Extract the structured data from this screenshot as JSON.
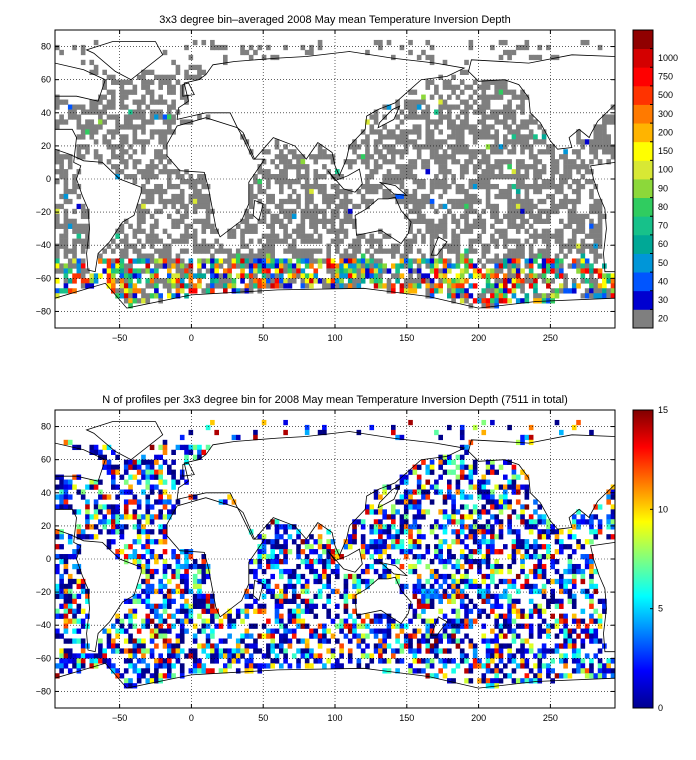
{
  "chart_data": [
    {
      "type": "heatmap",
      "title": "3x3 degree bin–averaged 2008 May mean Temperature Inversion Depth",
      "xlabel": "",
      "ylabel": "",
      "xlim": [
        -95,
        295
      ],
      "ylim": [
        -90,
        90
      ],
      "xticks": [
        -50,
        0,
        50,
        100,
        150,
        200,
        250
      ],
      "yticks": [
        80,
        60,
        40,
        20,
        0,
        -20,
        -40,
        -60,
        -80
      ],
      "xtick_labels": [
        "−50",
        "0",
        "50",
        "100",
        "150",
        "200",
        "250"
      ],
      "ytick_labels": [
        "80",
        "60",
        "40",
        "20",
        "0",
        "−20",
        "−40",
        "−60",
        "−80"
      ],
      "grid": true,
      "colorbar": {
        "labels": [
          "20",
          "30",
          "40",
          "50",
          "60",
          "70",
          "80",
          "90",
          "100",
          "150",
          "200",
          "300",
          "500",
          "750",
          "1000"
        ],
        "colors": [
          "#7f7f7f",
          "#0000d0",
          "#0055ff",
          "#0096d8",
          "#00a896",
          "#17c18a",
          "#30cc60",
          "#8cd83a",
          "#d8e834",
          "#ffff00",
          "#ffb400",
          "#ff7a00",
          "#ff3300",
          "#ff0000",
          "#d40000",
          "#900000"
        ]
      },
      "dominant_value": 20
    },
    {
      "type": "heatmap",
      "title": "N of profiles per 3x3 degree bin for 2008 May mean Temperature Inversion Depth  (7511 in total)",
      "xlabel": "",
      "ylabel": "",
      "xlim": [
        -95,
        295
      ],
      "ylim": [
        -90,
        90
      ],
      "xticks": [
        -50,
        0,
        50,
        100,
        150,
        200,
        250
      ],
      "yticks": [
        80,
        60,
        40,
        20,
        0,
        -20,
        -40,
        -60,
        -80
      ],
      "xtick_labels": [
        "−50",
        "0",
        "50",
        "100",
        "150",
        "200",
        "250"
      ],
      "ytick_labels": [
        "80",
        "60",
        "40",
        "20",
        "0",
        "−20",
        "−40",
        "−60",
        "−80"
      ],
      "grid": true,
      "colorbar": {
        "min": 0,
        "max": 15,
        "ticks": [
          0,
          5,
          10,
          15
        ],
        "tick_labels": [
          "0",
          "5",
          "10",
          "15"
        ]
      },
      "total_profiles": 7511
    }
  ]
}
